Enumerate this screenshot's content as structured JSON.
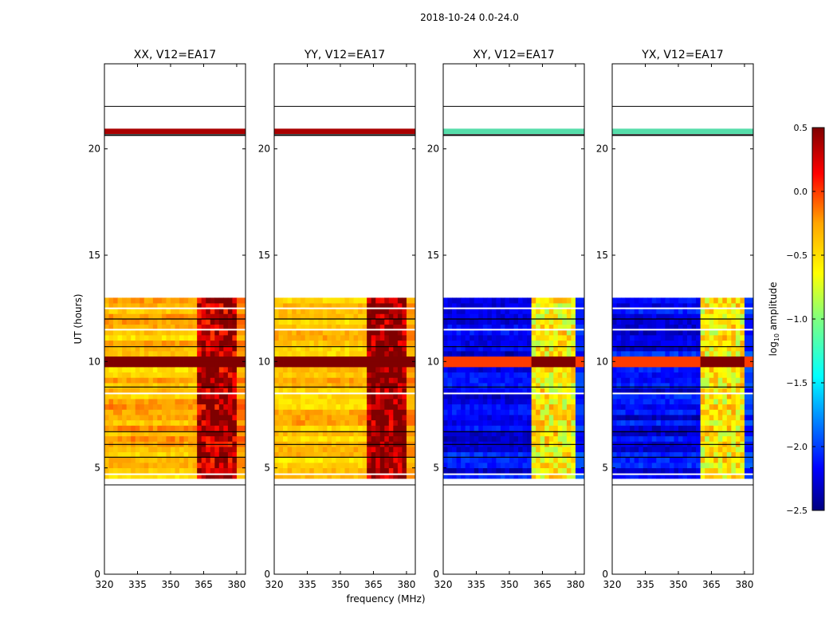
{
  "figure": {
    "suptitle": "2018-10-24 0.0-24.0",
    "xlabel": "frequency (MHz)",
    "ylabel": "UT (hours)",
    "colorbar": {
      "label_main": "log",
      "label_sub": "10",
      "label_rest": " amplitude",
      "min": -2.5,
      "max": 0.5,
      "ticks": [
        0.5,
        0.0,
        -0.5,
        -1.0,
        -1.5,
        -2.0,
        -2.5
      ],
      "tick_labels": [
        "0.5",
        "0.0",
        "−0.5",
        "−1.0",
        "−1.5",
        "−2.0",
        "−2.5"
      ]
    }
  },
  "chart_data": [
    {
      "type": "heatmap",
      "title": "XX, V12=EA17",
      "polarization": "XX",
      "xlim": [
        320,
        384
      ],
      "ylim": [
        0,
        24
      ],
      "xticks": [
        320,
        335,
        350,
        365,
        380
      ],
      "yticks": [
        0,
        5,
        10,
        15,
        20
      ],
      "base_value": -0.35,
      "rfi_band_mhz": [
        362,
        380
      ],
      "rfi_value": 0.2,
      "saturated_hours": [
        [
          9.7,
          10.2
        ]
      ],
      "data_hours": [
        [
          4.5,
          13.0
        ]
      ]
    },
    {
      "type": "heatmap",
      "title": "YY, V12=EA17",
      "polarization": "YY",
      "xlim": [
        320,
        384
      ],
      "ylim": [
        0,
        24
      ],
      "xticks": [
        320,
        335,
        350,
        365,
        380
      ],
      "yticks": [
        0,
        5,
        10,
        15,
        20
      ],
      "base_value": -0.4,
      "rfi_band_mhz": [
        362,
        380
      ],
      "rfi_value": 0.3,
      "saturated_hours": [
        [
          9.7,
          10.2
        ]
      ],
      "data_hours": [
        [
          4.5,
          13.0
        ]
      ]
    },
    {
      "type": "heatmap",
      "title": "XY, V12=EA17",
      "polarization": "XY",
      "xlim": [
        320,
        384
      ],
      "ylim": [
        0,
        24
      ],
      "xticks": [
        320,
        335,
        350,
        365,
        380
      ],
      "yticks": [
        0,
        5,
        10,
        15,
        20
      ],
      "base_value": -2.2,
      "rfi_band_mhz": [
        360,
        380
      ],
      "rfi_value": -0.7,
      "saturated_hours": [
        [
          9.7,
          10.2
        ]
      ],
      "data_hours": [
        [
          4.5,
          13.0
        ]
      ]
    },
    {
      "type": "heatmap",
      "title": "YX, V12=EA17",
      "polarization": "YX",
      "xlim": [
        320,
        384
      ],
      "ylim": [
        0,
        24
      ],
      "xticks": [
        320,
        335,
        350,
        365,
        380
      ],
      "yticks": [
        0,
        5,
        10,
        15,
        20
      ],
      "base_value": -2.2,
      "rfi_band_mhz": [
        360,
        380
      ],
      "rfi_value": -0.7,
      "saturated_hours": [
        [
          9.7,
          10.2
        ]
      ],
      "data_hours": [
        [
          4.5,
          13.0
        ]
      ]
    }
  ]
}
